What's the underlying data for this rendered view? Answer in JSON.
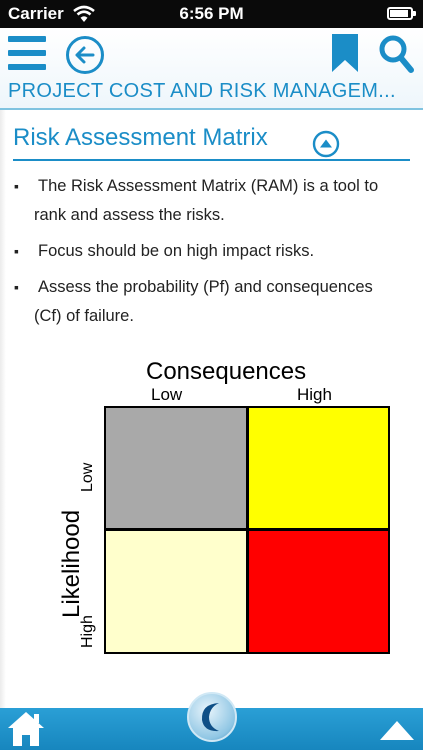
{
  "status_bar": {
    "carrier": "Carrier",
    "time": "6:56 PM"
  },
  "header": {
    "course_title": "PROJECT COST AND RISK MANAGEM...",
    "accent_color": "#1b8dc7"
  },
  "section": {
    "title": "Risk Assessment Matrix",
    "bullets": [
      "The Risk Assessment Matrix (RAM) is a tool to rank and assess the risks.",
      "Focus should be on high impact risks.",
      "Assess the probability (Pf) and consequences (Cf) of failure."
    ]
  },
  "matrix": {
    "heading": "Consequences",
    "columns": [
      "Low",
      "High"
    ],
    "row_axis": "Likelihood",
    "rows": [
      "Low",
      "High"
    ],
    "cell_colors": {
      "low_low": "#a9a9a9",
      "low_high": "#ffff00",
      "high_low": "#ffffcc",
      "high_high": "#ff0000"
    }
  },
  "icons": {
    "menu": "menu-icon",
    "back": "back-arrow-icon",
    "bookmark": "bookmark-icon",
    "search": "search-icon",
    "collapse": "chevron-up-icon",
    "home": "home-icon",
    "logo": "app-logo-icon",
    "scroll_up": "arrow-up-icon"
  }
}
